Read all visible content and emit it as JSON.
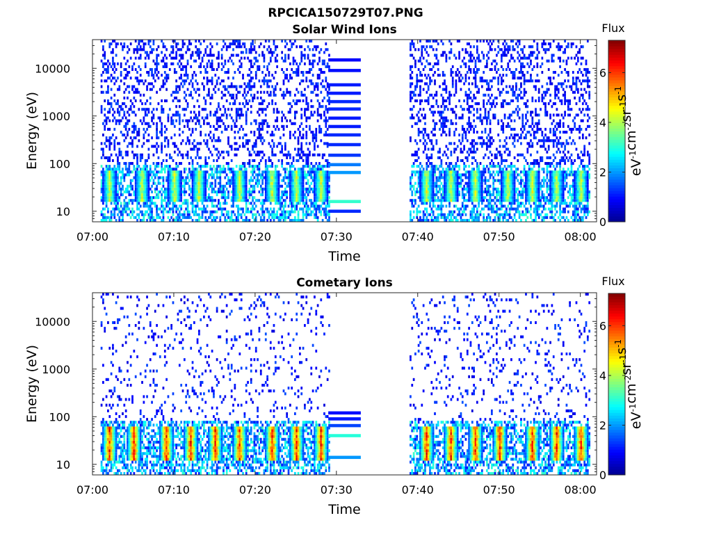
{
  "figure": {
    "suptitle": "RPCICA150729T07.PNG"
  },
  "colormap": [
    "#00008f",
    "#0000ff",
    "#0080ff",
    "#00ffff",
    "#80ff80",
    "#ffff00",
    "#ff8000",
    "#ff0000",
    "#800000"
  ],
  "chart_data": [
    {
      "type": "heatmap",
      "title": "Solar Wind Ions",
      "xlabel": "Time",
      "ylabel": "Energy (eV)",
      "y_scale": "log",
      "ylim": [
        6,
        40000
      ],
      "xlim": [
        "07:00",
        "08:02"
      ],
      "x_ticks": [
        "07:00",
        "07:10",
        "07:20",
        "07:30",
        "07:40",
        "07:50",
        "08:00"
      ],
      "y_ticks": [
        10,
        100,
        1000,
        10000
      ],
      "y_tick_labels": [
        "10",
        "100",
        "1000",
        "10000"
      ],
      "data_gaps": [
        [
          "07:33",
          "07:39"
        ]
      ],
      "sparse_window": [
        "07:29",
        "07:33"
      ],
      "colorbar": {
        "label": "Flux",
        "units": "eV-1 cm-2 sr-1 s-1",
        "range": [
          0,
          7.3
        ],
        "ticks": [
          0,
          2,
          4,
          6
        ]
      },
      "data_intervals": [
        [
          "07:01",
          "07:29"
        ],
        [
          "07:39",
          "08:01"
        ]
      ],
      "features": {
        "background_flux": [
          1,
          2
        ],
        "low_energy_band_eV": [
          20,
          50
        ],
        "band_peak_flux": 4.8,
        "band_peak_times": [
          "07:02",
          "07:06",
          "07:10",
          "07:13",
          "07:18",
          "07:22",
          "07:25",
          "07:28",
          "07:41",
          "07:44",
          "07:47",
          "07:51",
          "07:54",
          "07:57",
          "08:00"
        ]
      }
    },
    {
      "type": "heatmap",
      "title": "Cometary Ions",
      "xlabel": "Time",
      "ylabel": "Energy (eV)",
      "y_scale": "log",
      "ylim": [
        6,
        40000
      ],
      "xlim": [
        "07:00",
        "08:02"
      ],
      "x_ticks": [
        "07:00",
        "07:10",
        "07:20",
        "07:30",
        "07:40",
        "07:50",
        "08:00"
      ],
      "y_ticks": [
        10,
        100,
        1000,
        10000
      ],
      "y_tick_labels": [
        "10",
        "100",
        "1000",
        "10000"
      ],
      "data_gaps": [
        [
          "07:33",
          "07:39"
        ]
      ],
      "sparse_window": [
        "07:29",
        "07:33"
      ],
      "colorbar": {
        "label": "Flux",
        "units": "eV-1 cm-2 sr-1 s-1",
        "range": [
          0,
          7.3
        ],
        "ticks": [
          0,
          2,
          4,
          6
        ]
      },
      "data_intervals": [
        [
          "07:01",
          "07:29"
        ],
        [
          "07:39",
          "08:01"
        ]
      ],
      "features": {
        "background_flux": [
          1,
          1.5
        ],
        "low_energy_band_eV": [
          15,
          45
        ],
        "band_peak_flux": 6.8,
        "band_peak_times": [
          "07:02",
          "07:05",
          "07:09",
          "07:12",
          "07:15",
          "07:18",
          "07:22",
          "07:25",
          "07:28",
          "07:41",
          "07:44",
          "07:47",
          "07:50",
          "07:54",
          "07:57",
          "08:00"
        ]
      }
    }
  ]
}
